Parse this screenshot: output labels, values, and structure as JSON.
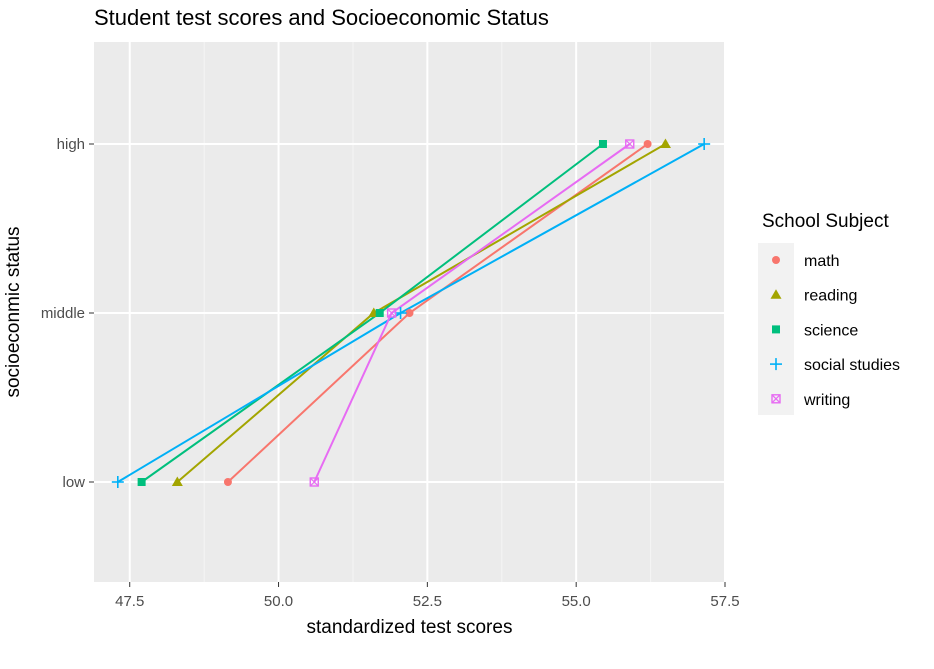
{
  "chart_data": {
    "type": "line",
    "title": "Student test scores and Socioeconomic Status",
    "xlabel": "standardized test scores",
    "ylabel": "socioeconmic status",
    "xlim": [
      46.9,
      57.5
    ],
    "x_ticks": [
      47.5,
      50.0,
      52.5,
      55.0,
      57.5
    ],
    "x_tick_labels": [
      "47.5",
      "50.0",
      "52.5",
      "55.0",
      "57.5"
    ],
    "categories": [
      "low",
      "middle",
      "high"
    ],
    "grid": true,
    "legend": {
      "title": "School Subject",
      "position": "right"
    },
    "series": [
      {
        "name": "math",
        "color": "#F8766D",
        "marker": "circle",
        "values": [
          49.15,
          52.2,
          56.2
        ]
      },
      {
        "name": "reading",
        "color": "#A3A500",
        "marker": "triangle",
        "values": [
          48.3,
          51.6,
          56.5
        ]
      },
      {
        "name": "science",
        "color": "#00BF7D",
        "marker": "square",
        "values": [
          47.7,
          51.7,
          55.45
        ]
      },
      {
        "name": "social studies",
        "color": "#00B0F6",
        "marker": "plus",
        "values": [
          47.3,
          52.05,
          57.15
        ]
      },
      {
        "name": "writing",
        "color": "#E76BF3",
        "marker": "boxed-x",
        "values": [
          50.6,
          51.9,
          55.9
        ]
      }
    ]
  }
}
